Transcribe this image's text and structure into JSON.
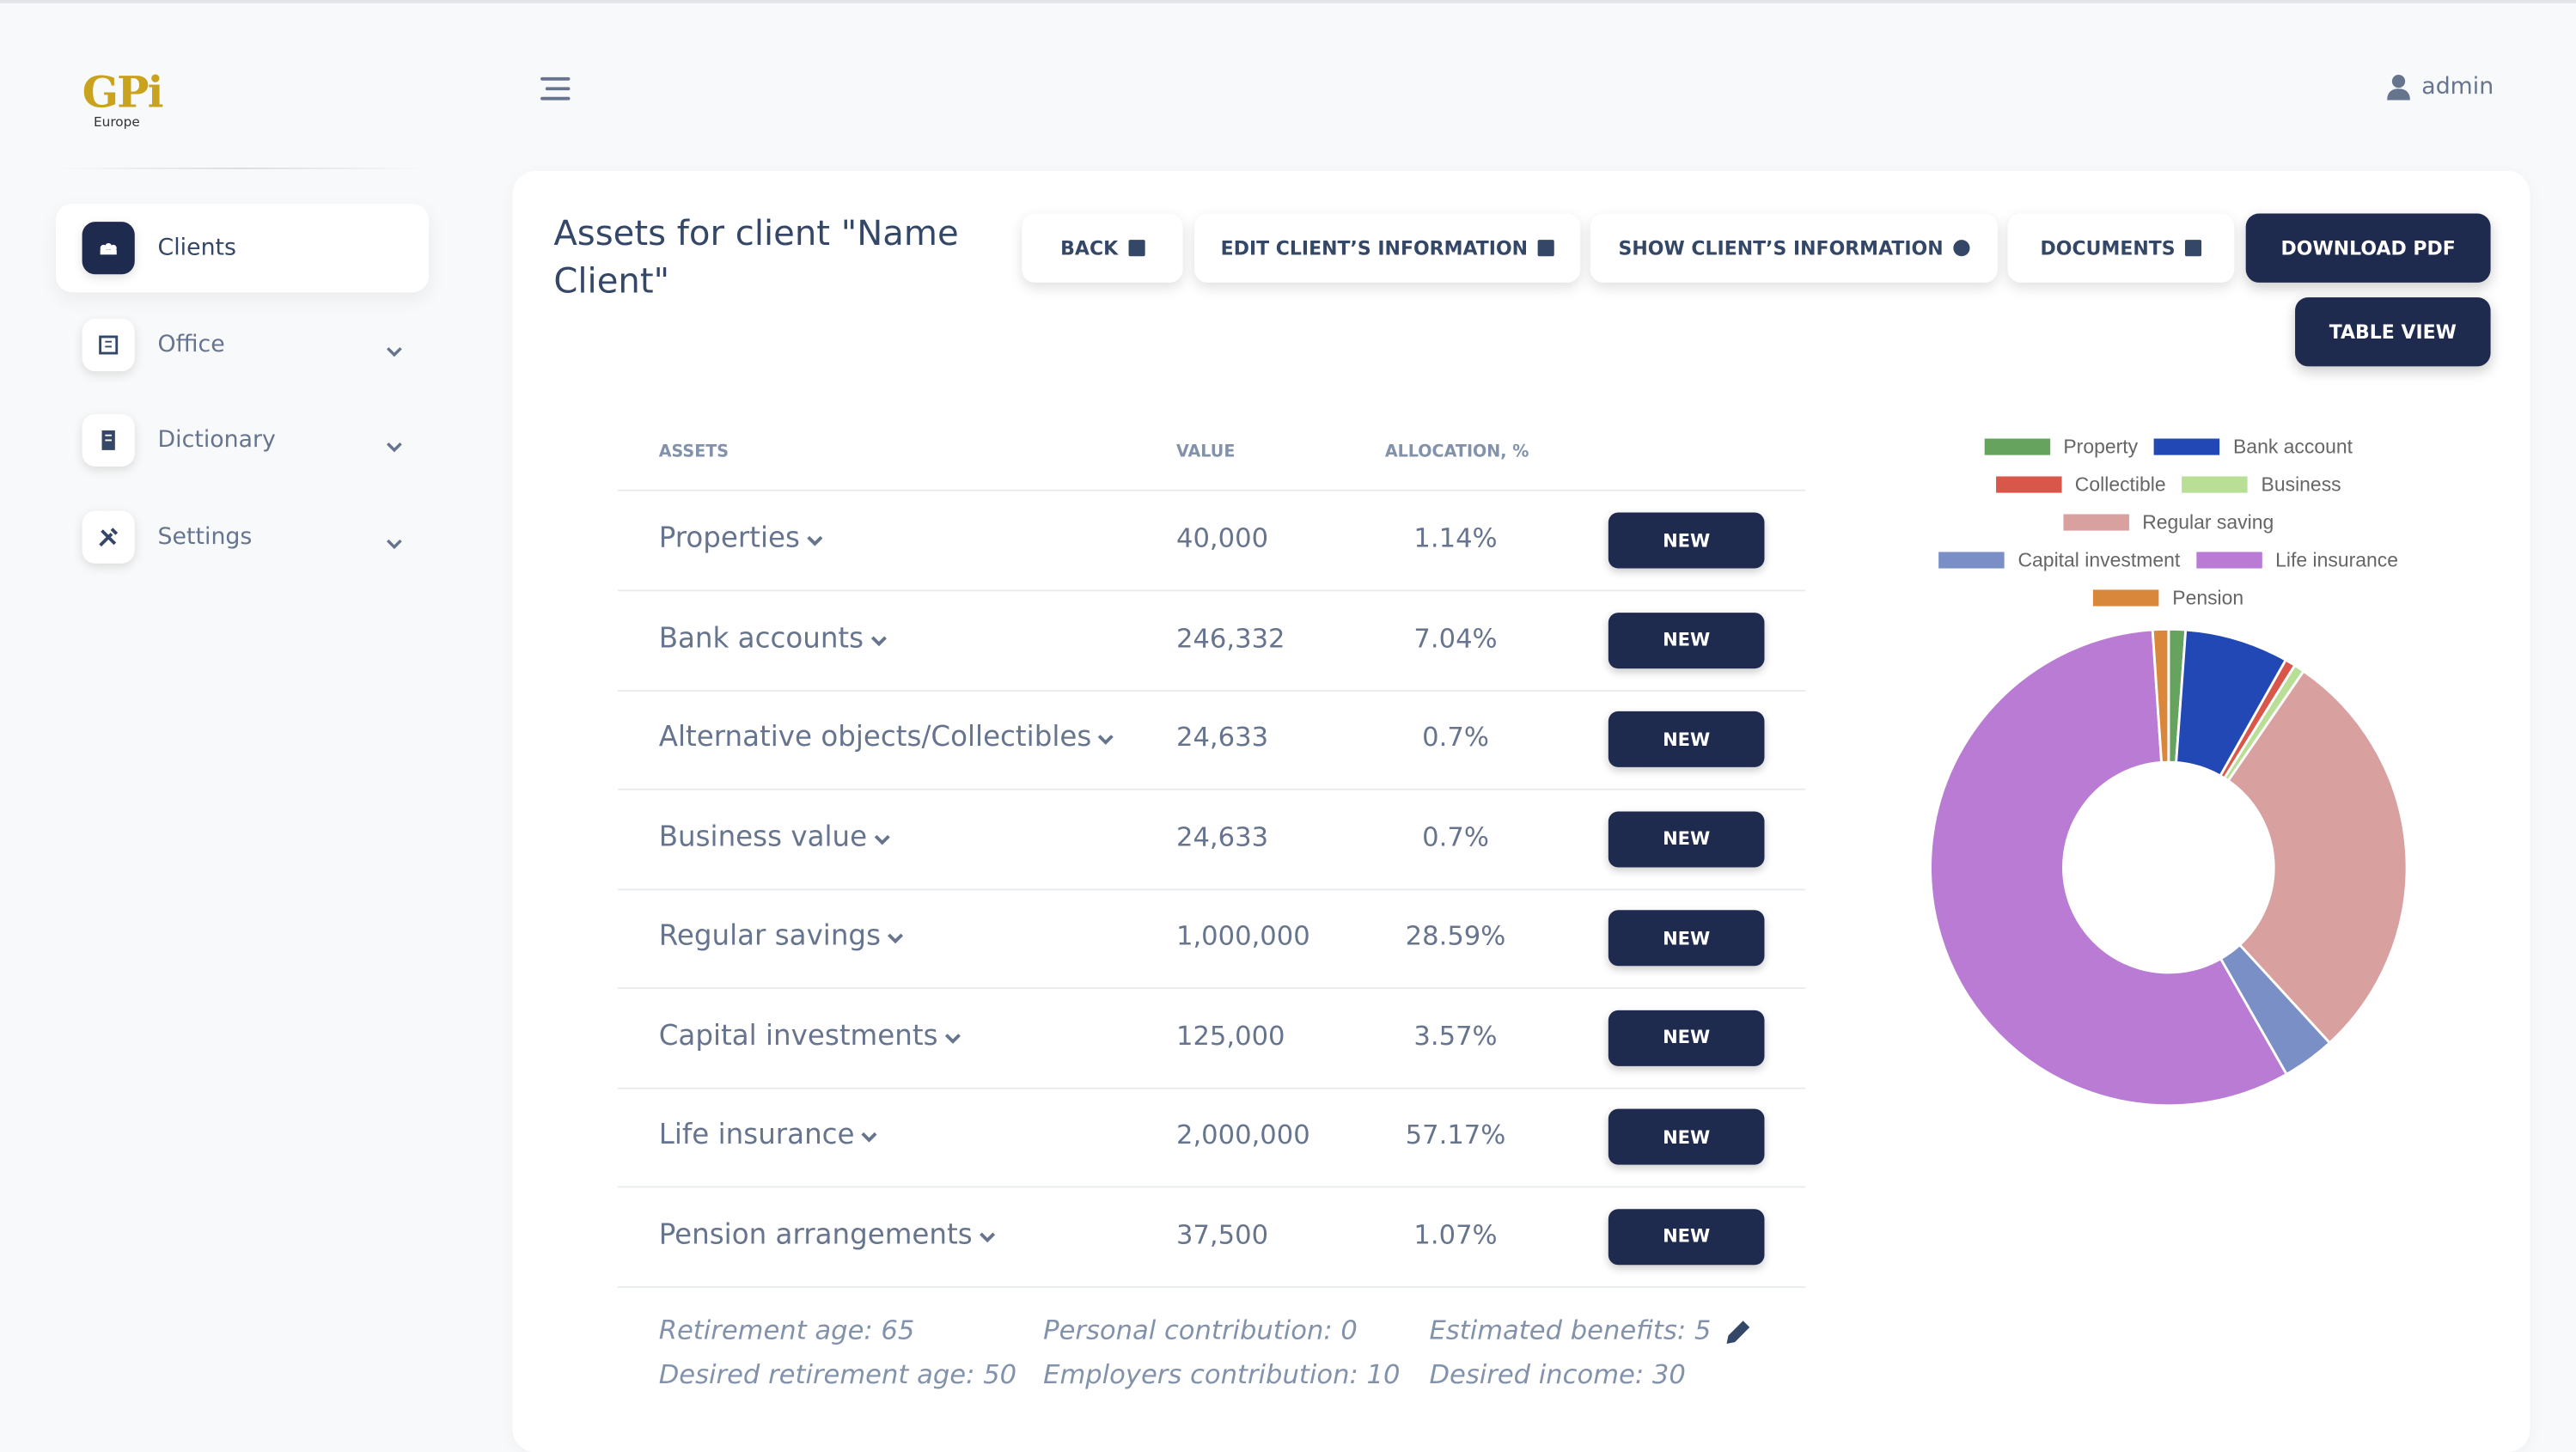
{
  "brand": {
    "logo": "GPi",
    "subtitle": "Europe"
  },
  "user": "admin",
  "nav": [
    "Clients",
    "Office",
    "Dictionary",
    "Settings"
  ],
  "page_title": "Assets for client \"Name Client\"",
  "buttons": [
    "BACK",
    "EDIT CLIENT’S INFORMATION",
    "SHOW CLIENT’S INFORMATION",
    "DOCUMENTS",
    "DOWNLOAD PDF",
    "TABLE VIEW"
  ],
  "table": {
    "headers": [
      "ASSETS",
      "VALUE",
      "ALLOCATION, %"
    ],
    "rows": [
      "Properties",
      "Bank accounts",
      "Alternative objects/Collectibles",
      "Business value",
      "Regular savings",
      "Capital investments",
      "Life insurance",
      "Pension arrangements"
    ],
    "allocation": [
      "1.14%",
      "7.04%",
      "0.7%",
      "0.7%",
      "28.59%",
      "3.57%",
      "57.17%",
      "1.07%"
    ],
    "new_button": "NEW"
  },
  "pension_details": [
    [
      "Retirement age: 65",
      "Desired retirement age: 50"
    ],
    [
      "Personal contribution: 0",
      "Employers contribution: 10"
    ],
    [
      "Estimated benefits: 5",
      "Desired income: 30"
    ]
  ],
  "chart_data": {
    "type": "pie",
    "categories": [
      "Property",
      "Bank account",
      "Collectible",
      "Business",
      "Regular saving",
      "Capital investment",
      "Life insurance",
      "Pension"
    ],
    "values": [
      40000,
      246332,
      24633,
      24633,
      1000000,
      125000,
      2000000,
      37500
    ],
    "value_labels": [
      "40,000",
      "246,332",
      "24,633",
      "24,633",
      "1,000,000",
      "125,000",
      "2,000,000",
      "37,500"
    ],
    "colors": [
      "#66a35e",
      "#2148b5",
      "#d9564a",
      "#b9de95",
      "#d9a0a0",
      "#7b8fc7",
      "#b97bd4",
      "#d9873a"
    ],
    "legend": "top",
    "donut": true
  }
}
